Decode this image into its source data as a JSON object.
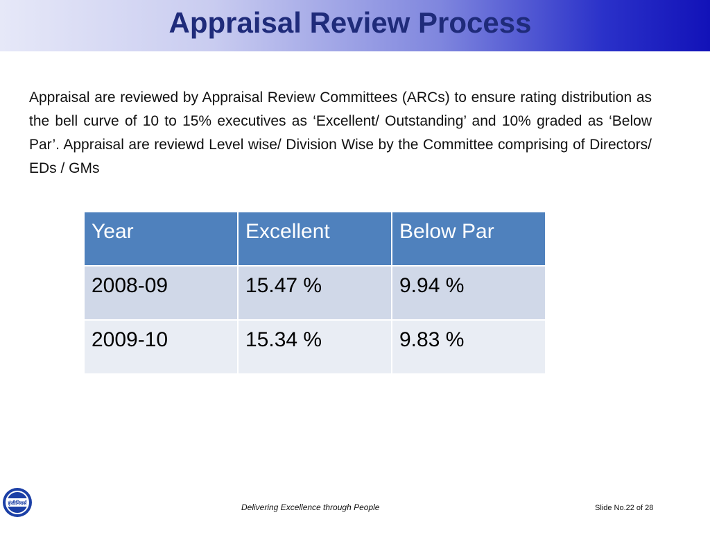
{
  "slide": {
    "title": "Appraisal Review Process",
    "body_text": "Appraisal are reviewed by Appraisal Review Committees (ARCs) to ensure rating distribution as the bell curve of 10 to 15% executives as ‘Excellent/ Outstanding’ and  10% graded as ‘Below Par’. Appraisal are reviewd Level wise/ Division Wise by the Committee comprising of Directors/ EDs / GMs"
  },
  "table": {
    "headers": [
      "Year",
      "Excellent",
      "Below Par"
    ],
    "rows": [
      [
        "2008-09",
        "15.47 %",
        "9.94 %"
      ],
      [
        "2009-10",
        "15.34 %",
        "9.83 %"
      ]
    ]
  },
  "footer": {
    "logo_text": "इंजीनियर्स",
    "tagline": "Delivering Excellence through People",
    "slide_number": "Slide No.22 of 28"
  },
  "colors": {
    "title": "#1f2b7a",
    "header_cell": "#4f81bd",
    "row_dark": "#d0d8e8",
    "row_light": "#e9edf4",
    "logo_blue": "#1b3fa6"
  }
}
